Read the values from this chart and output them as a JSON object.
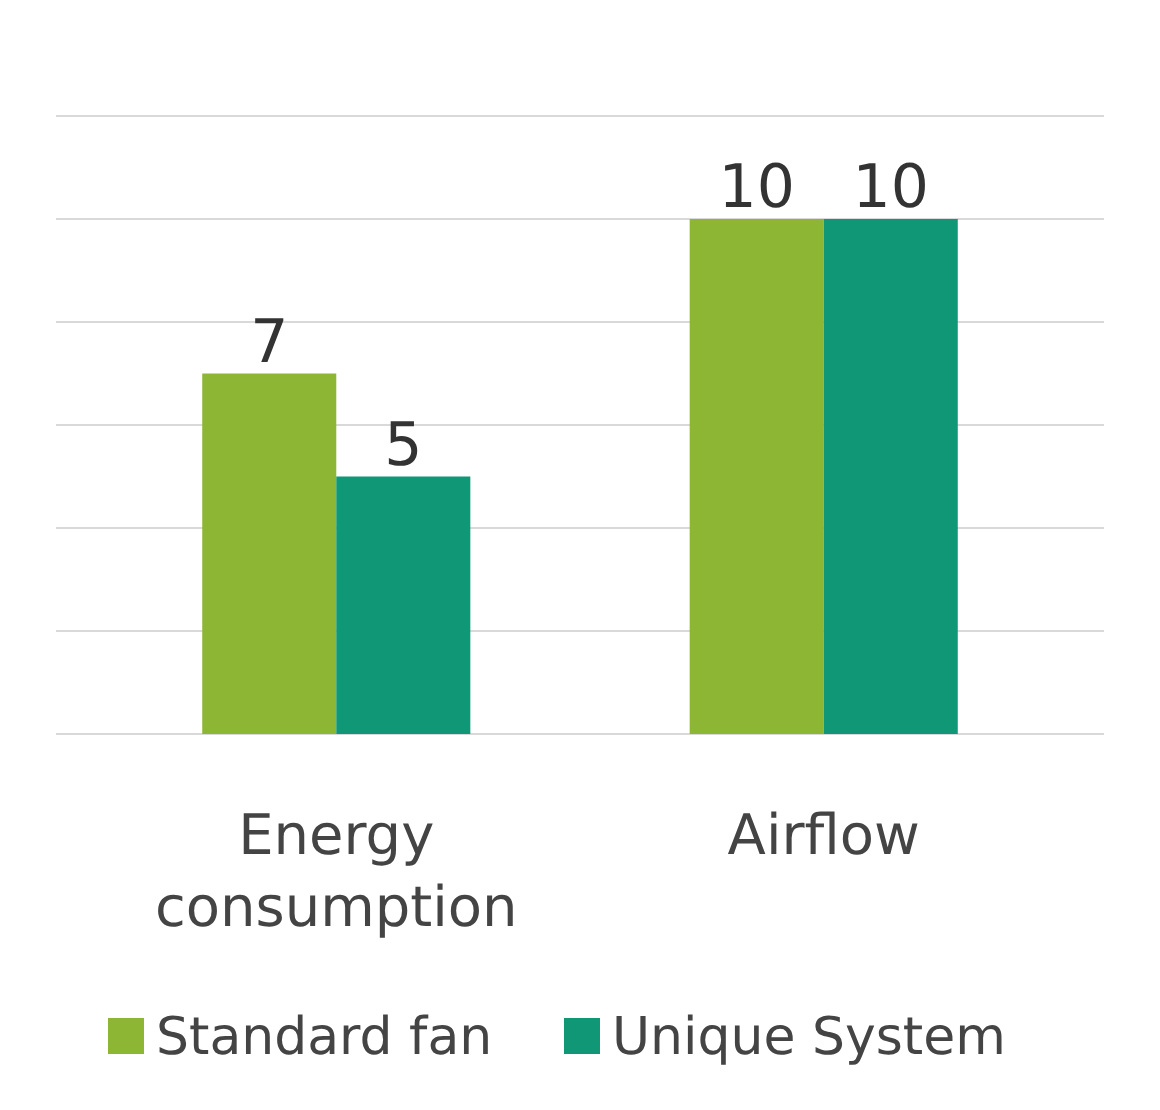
{
  "chart_data": {
    "type": "bar",
    "categories": [
      "Energy consumption",
      "Airflow"
    ],
    "series": [
      {
        "name": "Standard fan",
        "color": "#8db634",
        "values": [
          7,
          10
        ]
      },
      {
        "name": "Unique System",
        "color": "#0f9776",
        "values": [
          5,
          10
        ]
      }
    ],
    "ylim": [
      0,
      12
    ],
    "yticks": [
      {
        "value": 0,
        "label": null
      },
      {
        "value": 2,
        "label": null
      },
      {
        "value": 4,
        "label": null
      },
      {
        "value": 6,
        "label": null
      },
      {
        "value": 8,
        "label": null
      },
      {
        "value": 10,
        "label": null
      },
      {
        "value": 12,
        "label": null
      }
    ],
    "grid": "y",
    "data_labels": true,
    "legend": "bottom",
    "tick_labels": "x"
  }
}
